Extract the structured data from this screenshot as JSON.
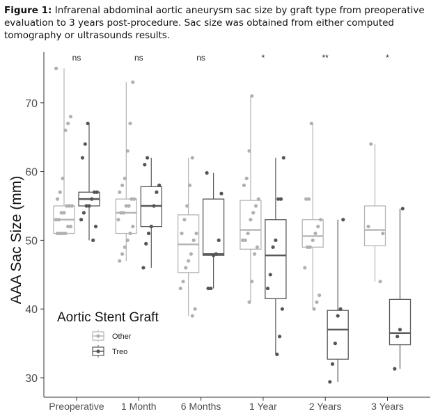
{
  "caption": {
    "label": "Figure 1:",
    "text": " Infrarenal abdominal aortic aneurysm sac size by graft type from preoperative evaluation to 3 years post-procedure. Sac size was obtained from either computed tomography or ultrasounds results."
  },
  "chart_data": {
    "type": "box",
    "ylabel": "AAA Sac Size (mm)",
    "xlabel": "",
    "ylim": [
      28,
      78
    ],
    "yticks": [
      30,
      40,
      50,
      60,
      70
    ],
    "categories": [
      "Preoperative",
      "1 Month",
      "6 Months",
      "1 Year",
      "2 Years",
      "3 Years"
    ],
    "significance": [
      "ns",
      "ns",
      "ns",
      "*",
      "**",
      "*"
    ],
    "legend": {
      "title": "Aortic Stent Graft",
      "entries": [
        "Other",
        "Treo"
      ]
    },
    "colors": {
      "Other": "#b5b5b5",
      "Treo": "#585858",
      "point_other": "#b0b0b0",
      "point_treo": "#555555"
    },
    "grid": false,
    "series": [
      {
        "name": "Other",
        "boxes": [
          {
            "category": "Preoperative",
            "min": 51,
            "q1": 51,
            "median": 53,
            "q3": 55,
            "max": 75
          },
          {
            "category": "1 Month",
            "min": 47,
            "q1": 51,
            "median": 54,
            "q3": 56,
            "max": 73
          },
          {
            "category": "6 Months",
            "min": 39,
            "q1": 45.3,
            "median": 49.4,
            "q3": 53.7,
            "max": 62
          },
          {
            "category": "1 Year",
            "min": 41,
            "q1": 48.7,
            "median": 51.5,
            "q3": 55.8,
            "max": 71
          },
          {
            "category": "2 Years",
            "min": 40,
            "q1": 49,
            "median": 50.6,
            "q3": 53,
            "max": 67
          },
          {
            "category": "3 Years",
            "min": 44,
            "q1": 49.2,
            "median": 51.5,
            "q3": 55,
            "max": 64
          }
        ],
        "points": [
          [
            75,
            68,
            67,
            66,
            59,
            57,
            56,
            55,
            55,
            55,
            54,
            54,
            53,
            53,
            52,
            52,
            51,
            51,
            51,
            51
          ],
          [
            73,
            67,
            63,
            59,
            58,
            57,
            56,
            56,
            55,
            55,
            54,
            54,
            53,
            52,
            51,
            50,
            49,
            48,
            47
          ],
          [
            62,
            58,
            55,
            53,
            51,
            51,
            50,
            48,
            47,
            46,
            44,
            43,
            40,
            39
          ],
          [
            71,
            63,
            59,
            58,
            56,
            55,
            54,
            53,
            51,
            50,
            50,
            49,
            48,
            44,
            41
          ],
          [
            67,
            56,
            56,
            53,
            52,
            51,
            50,
            49,
            49,
            46,
            42,
            41,
            40
          ],
          [
            64,
            52,
            51,
            44
          ]
        ]
      },
      {
        "name": "Treo",
        "boxes": [
          {
            "category": "Preoperative",
            "min": 50,
            "q1": 55,
            "median": 56,
            "q3": 57,
            "max": 67
          },
          {
            "category": "1 Month",
            "min": 46,
            "q1": 52,
            "median": 55,
            "q3": 57.8,
            "max": 62
          },
          {
            "category": "6 Months",
            "min": 43,
            "q1": 47.8,
            "median": 48,
            "q3": 56,
            "max": 59.8
          },
          {
            "category": "1 Year",
            "min": 33.4,
            "q1": 41.5,
            "median": 47.8,
            "q3": 53,
            "max": 62
          },
          {
            "category": "2 Years",
            "min": 29.4,
            "q1": 32.7,
            "median": 37,
            "q3": 39.8,
            "max": 53
          },
          {
            "category": "3 Years",
            "min": 31.3,
            "q1": 34.8,
            "median": 36.5,
            "q3": 41.4,
            "max": 54.6
          }
        ],
        "points": [
          [
            67,
            64,
            62,
            57,
            57,
            56,
            55,
            55,
            54,
            53,
            52,
            50
          ],
          [
            62,
            61,
            58,
            57,
            55,
            52,
            51,
            49.5,
            46
          ],
          [
            59.8,
            56.8,
            50,
            48,
            47.8,
            43,
            43
          ],
          [
            62,
            56,
            56,
            50,
            49,
            45,
            43,
            40,
            36,
            33.4
          ],
          [
            53,
            40,
            39,
            35,
            32,
            29.4
          ],
          [
            54.6,
            37,
            36,
            31.3
          ]
        ]
      }
    ]
  }
}
